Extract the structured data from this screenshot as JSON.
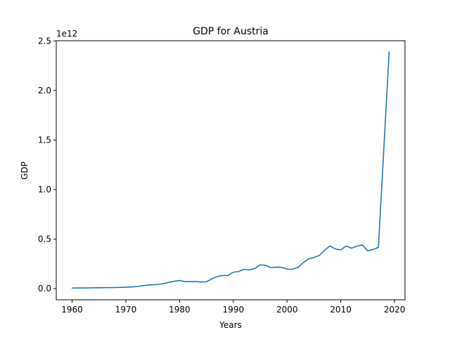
{
  "chart_data": {
    "type": "line",
    "title": "GDP for Austria",
    "xlabel": "Years",
    "ylabel": "GDP",
    "y_scale_note": "1e12",
    "xlim": [
      1957.05,
      2021.95
    ],
    "ylim": [
      -0.112,
      2.502
    ],
    "x_ticks": [
      1960,
      1970,
      1980,
      1990,
      2000,
      2010,
      2020
    ],
    "x_tick_labels": [
      "1960",
      "1970",
      "1980",
      "1990",
      "2000",
      "2010",
      "2020"
    ],
    "y_ticks": [
      0.0,
      0.5,
      1.0,
      1.5,
      2.0,
      2.5
    ],
    "y_tick_labels": [
      "0.0",
      "0.5",
      "1.0",
      "1.5",
      "2.0",
      "2.5"
    ],
    "grid": false,
    "series": [
      {
        "color": "#1f77b4",
        "x": [
          1960,
          1961,
          1962,
          1963,
          1964,
          1965,
          1966,
          1967,
          1968,
          1969,
          1970,
          1971,
          1972,
          1973,
          1974,
          1975,
          1976,
          1977,
          1978,
          1979,
          1980,
          1981,
          1982,
          1983,
          1984,
          1985,
          1986,
          1987,
          1988,
          1989,
          1990,
          1991,
          1992,
          1993,
          1994,
          1995,
          1996,
          1997,
          1998,
          1999,
          2000,
          2001,
          2002,
          2003,
          2004,
          2005,
          2006,
          2007,
          2008,
          2009,
          2010,
          2011,
          2012,
          2013,
          2014,
          2015,
          2016,
          2017,
          2018,
          2019
        ],
        "y": [
          0.006,
          0.007,
          0.007,
          0.008,
          0.009,
          0.01,
          0.011,
          0.011,
          0.012,
          0.013,
          0.015,
          0.017,
          0.021,
          0.029,
          0.036,
          0.04,
          0.043,
          0.051,
          0.063,
          0.075,
          0.083,
          0.071,
          0.071,
          0.072,
          0.067,
          0.069,
          0.1,
          0.123,
          0.133,
          0.133,
          0.166,
          0.174,
          0.195,
          0.19,
          0.203,
          0.241,
          0.236,
          0.212,
          0.217,
          0.216,
          0.197,
          0.196,
          0.213,
          0.262,
          0.3,
          0.315,
          0.336,
          0.389,
          0.431,
          0.4,
          0.391,
          0.431,
          0.409,
          0.43,
          0.442,
          0.382,
          0.395,
          0.417,
          1.4,
          2.39
        ]
      }
    ]
  }
}
